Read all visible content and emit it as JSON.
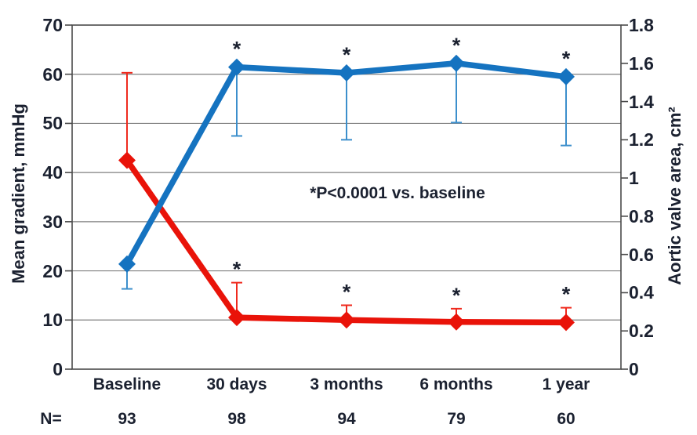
{
  "page": {
    "background": "#ffffff",
    "text_color": "#1b2130"
  },
  "chart_data": {
    "type": "line",
    "categories": [
      "Baseline",
      "30 days",
      "3 months",
      "6 months",
      "1 year"
    ],
    "n_row": {
      "label": "N=",
      "values": [
        "93",
        "98",
        "94",
        "79",
        "60"
      ]
    },
    "left_axis": {
      "label": "Mean gradient, mmHg",
      "min": 0,
      "max": 70,
      "ticks": [
        "0",
        "10",
        "20",
        "30",
        "40",
        "50",
        "60",
        "70"
      ]
    },
    "right_axis": {
      "label": "Aortic valve area, cm²",
      "min": 0,
      "max": 1.8,
      "ticks": [
        "0",
        "0.2",
        "0.4",
        "0.6",
        "0.8",
        "1",
        "1.2",
        "1.4",
        "1.6",
        "1.8"
      ]
    },
    "annotation": "*P<0.0001 vs. baseline",
    "sig_marker": "*",
    "grid": "horizontal-at-left-axis-steps",
    "legend": "none",
    "series": [
      {
        "name": "Mean gradient",
        "axis": "left",
        "color": "#e91309",
        "err_color": "#ef2a1e",
        "values": [
          42.5,
          10.5,
          10.0,
          9.6,
          9.5
        ],
        "err_upper": [
          60.3,
          17.6,
          13.0,
          12.3,
          12.5
        ],
        "err_lower": null,
        "sig": [
          false,
          true,
          true,
          true,
          true
        ]
      },
      {
        "name": "Aortic valve area",
        "axis": "right",
        "color": "#1573c0",
        "err_color": "#3c8fcc",
        "values": [
          0.55,
          1.58,
          1.55,
          1.6,
          1.53
        ],
        "err_upper": null,
        "err_lower": [
          0.42,
          1.22,
          1.2,
          1.29,
          1.17
        ],
        "sig": [
          false,
          true,
          true,
          true,
          true
        ]
      }
    ],
    "styles": {
      "gridline_color": "#7f7f7f",
      "border_color": "#4a4a4a"
    }
  }
}
